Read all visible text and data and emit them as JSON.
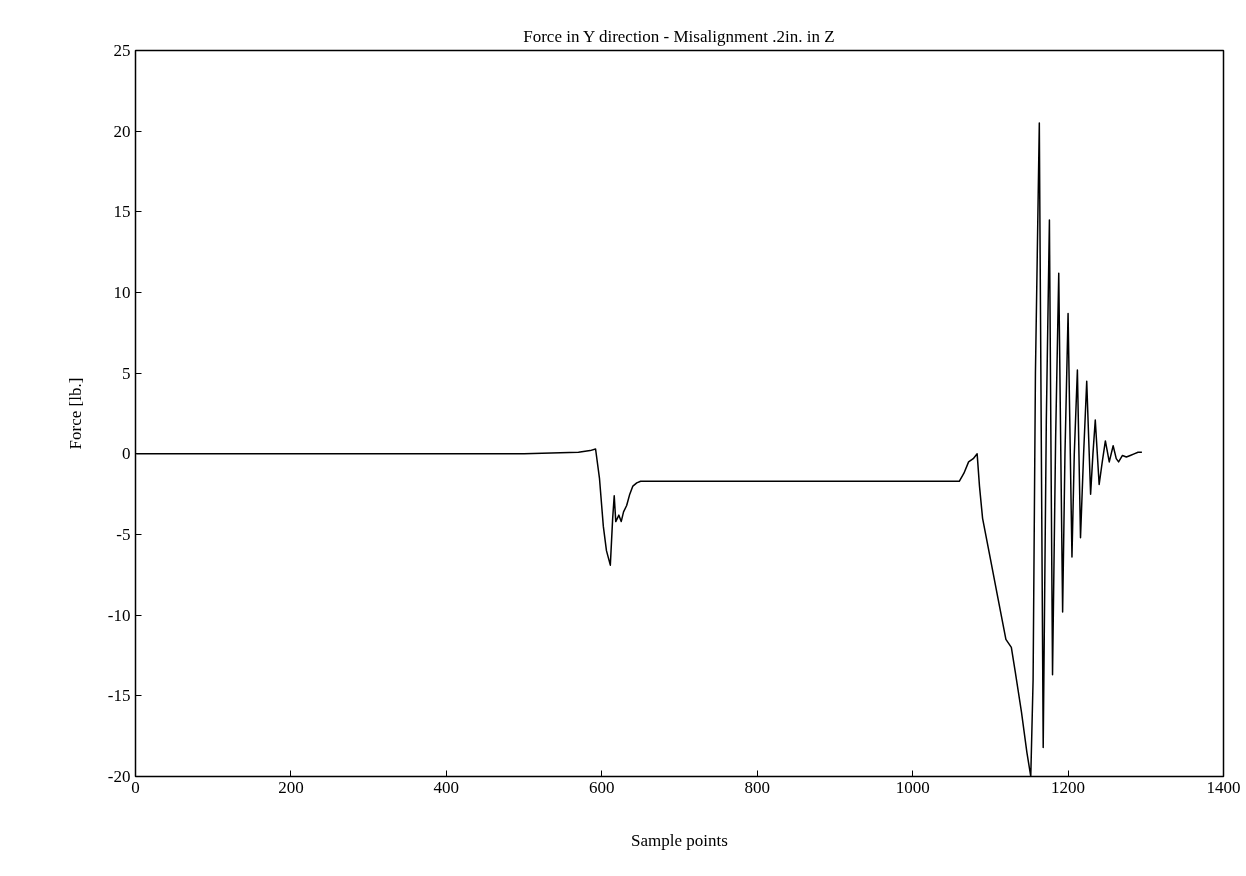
{
  "chart_data": {
    "type": "line",
    "title": "Force in Y direction - Misalignment .2in. in Z",
    "xlabel": "Sample points",
    "ylabel": "Force [lb.]",
    "xlim": [
      0,
      1400
    ],
    "ylim": [
      -20,
      25
    ],
    "xticks": [
      0,
      200,
      400,
      600,
      800,
      1000,
      1200,
      1400
    ],
    "yticks": [
      -20,
      -15,
      -10,
      -5,
      0,
      5,
      10,
      15,
      20,
      25
    ],
    "grid": false,
    "series": [
      {
        "color": "#000000",
        "x": [
          1,
          100,
          200,
          300,
          400,
          500,
          570,
          585,
          592,
          597,
          602,
          606,
          611,
          614,
          616,
          618,
          622,
          625,
          628,
          632,
          636,
          640,
          645,
          650,
          700,
          800,
          900,
          1000,
          1060,
          1066,
          1072,
          1078,
          1083,
          1086,
          1090,
          1100,
          1110,
          1120,
          1127,
          1132,
          1140,
          1147,
          1152,
          1155,
          1158,
          1163,
          1168,
          1172,
          1176,
          1180,
          1184,
          1188,
          1193,
          1196,
          1200,
          1205,
          1208,
          1212,
          1216,
          1220,
          1224,
          1229,
          1232,
          1235,
          1240,
          1244,
          1248,
          1253,
          1258,
          1262,
          1265,
          1270,
          1275,
          1280,
          1285,
          1290,
          1295
        ],
        "values": [
          0,
          0,
          0,
          0,
          0,
          0,
          0.1,
          0.2,
          0.3,
          -1.5,
          -4.5,
          -6,
          -6.9,
          -4,
          -2.6,
          -4.2,
          -3.8,
          -4.2,
          -3.6,
          -3.2,
          -2.5,
          -2.0,
          -1.8,
          -1.7,
          -1.7,
          -1.7,
          -1.7,
          -1.7,
          -1.7,
          -1.2,
          -0.5,
          -0.3,
          0,
          -2,
          -4,
          -6.5,
          -9,
          -11.5,
          -12,
          -13.5,
          -16,
          -18.5,
          -20,
          -14,
          5,
          20.5,
          -18.2,
          2,
          14.5,
          -13.7,
          1,
          11.2,
          -9.8,
          0,
          8.7,
          -6.4,
          0,
          5.2,
          -5.2,
          0,
          4.5,
          -2.5,
          0,
          2.1,
          -1.9,
          -0.5,
          0.8,
          -0.5,
          0.5,
          -0.3,
          -0.5,
          -0.1,
          -0.2,
          -0.1,
          0,
          0.1,
          0.1
        ]
      }
    ]
  }
}
